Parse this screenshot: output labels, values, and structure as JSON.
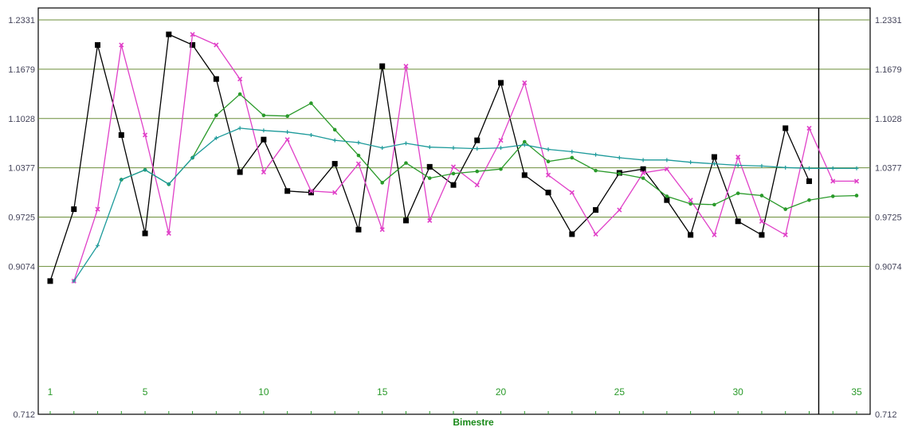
{
  "chart_data": {
    "type": "line",
    "xlabel": "Bimestre",
    "ylabel": "",
    "title": "",
    "xlim": [
      1,
      35
    ],
    "ylim": [
      0.712,
      1.2331
    ],
    "y_ticks": [
      0.712,
      0.9074,
      0.9725,
      1.0377,
      1.1028,
      1.1679,
      1.2331
    ],
    "y_tick_labels": [
      "0.712",
      "0.9074",
      "0.9725",
      "1.0377",
      "1.1028",
      "1.1679",
      "1.2331"
    ],
    "x_tick_labels": [
      {
        "x": 1,
        "label": "1"
      },
      {
        "x": 5,
        "label": "5"
      },
      {
        "x": 10,
        "label": "10"
      },
      {
        "x": 15,
        "label": "15"
      },
      {
        "x": 20,
        "label": "20"
      },
      {
        "x": 25,
        "label": "25"
      },
      {
        "x": 30,
        "label": "30"
      },
      {
        "x": 35,
        "label": "35"
      }
    ],
    "vertical_marker_x": 33,
    "grid": true,
    "series": [
      {
        "color": "#000000",
        "marker": "square",
        "x": [
          1,
          2,
          3,
          4,
          5,
          6,
          7,
          8,
          9,
          10,
          11,
          12,
          13,
          14,
          15,
          16,
          17,
          18,
          19,
          20,
          21,
          22,
          23,
          24,
          25,
          26,
          27,
          28,
          29,
          30,
          31,
          32,
          33
        ],
        "values": [
          0.888,
          0.983,
          1.2,
          1.081,
          0.951,
          1.214,
          1.2,
          1.155,
          1.032,
          1.075,
          1.007,
          1.005,
          1.043,
          0.956,
          1.172,
          0.968,
          1.039,
          1.015,
          1.074,
          1.15,
          1.028,
          1.005,
          0.95,
          0.982,
          1.031,
          1.036,
          0.995,
          0.949,
          1.052,
          0.967,
          0.949,
          1.09,
          1.02
        ]
      },
      {
        "color": "#e040c8",
        "marker": "cross",
        "x": [
          2,
          3,
          4,
          5,
          6,
          7,
          8,
          9,
          10,
          11,
          12,
          13,
          14,
          15,
          16,
          17,
          18,
          19,
          20,
          21,
          22,
          23,
          24,
          25,
          26,
          27,
          28,
          29,
          30,
          31,
          32,
          33,
          34,
          35
        ],
        "values": [
          0.888,
          0.983,
          1.2,
          1.081,
          0.951,
          1.214,
          1.2,
          1.155,
          1.032,
          1.075,
          1.007,
          1.005,
          1.043,
          0.956,
          1.172,
          0.968,
          1.039,
          1.015,
          1.074,
          1.15,
          1.028,
          1.005,
          0.95,
          0.982,
          1.031,
          1.036,
          0.995,
          0.949,
          1.052,
          0.967,
          0.949,
          1.09,
          1.02,
          1.02
        ]
      },
      {
        "color": "#2a9a2a",
        "marker": "dot",
        "x": [
          4,
          5,
          6,
          7,
          8,
          9,
          10,
          11,
          12,
          13,
          14,
          15,
          16,
          17,
          18,
          19,
          20,
          21,
          22,
          23,
          24,
          25,
          26,
          27,
          28,
          29,
          30,
          31,
          32,
          33,
          34,
          35
        ],
        "values": [
          1.022,
          1.035,
          1.016,
          1.051,
          1.107,
          1.135,
          1.107,
          1.106,
          1.123,
          1.088,
          1.054,
          1.018,
          1.044,
          1.024,
          1.03,
          1.033,
          1.036,
          1.072,
          1.046,
          1.051,
          1.034,
          1.03,
          1.024,
          1.0,
          0.99,
          0.989,
          1.004,
          1.001,
          0.983,
          0.995,
          1.0,
          1.001
        ]
      },
      {
        "color": "#1c9a9a",
        "marker": "plus",
        "x": [
          2,
          3,
          4,
          5,
          6,
          7,
          8,
          9,
          10,
          11,
          12,
          13,
          14,
          15,
          16,
          17,
          18,
          19,
          20,
          21,
          22,
          23,
          24,
          25,
          26,
          27,
          28,
          29,
          30,
          31,
          32,
          33,
          34,
          35
        ],
        "values": [
          0.888,
          0.935,
          1.022,
          1.035,
          1.016,
          1.051,
          1.077,
          1.09,
          1.087,
          1.085,
          1.081,
          1.074,
          1.071,
          1.064,
          1.07,
          1.065,
          1.064,
          1.063,
          1.064,
          1.068,
          1.062,
          1.059,
          1.055,
          1.051,
          1.048,
          1.048,
          1.045,
          1.043,
          1.041,
          1.04,
          1.038,
          1.037,
          1.037,
          1.037
        ]
      }
    ]
  }
}
